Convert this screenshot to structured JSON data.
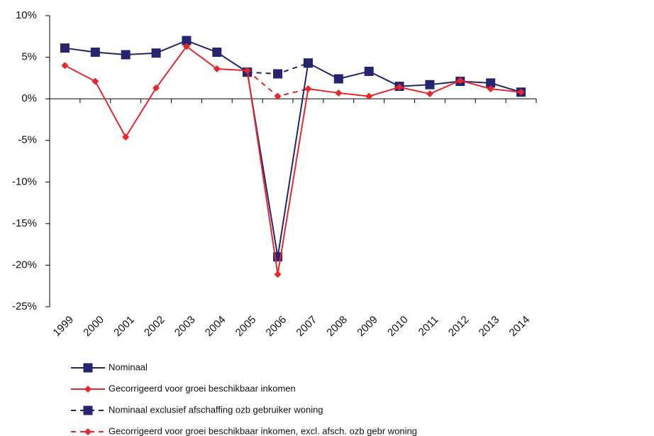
{
  "chart_data": {
    "type": "line",
    "categories": [
      "1999",
      "2000",
      "2001",
      "2002",
      "2003",
      "2004",
      "2005",
      "2006",
      "2007",
      "2008",
      "2009",
      "2010",
      "2011",
      "2012",
      "2013",
      "2014"
    ],
    "series": [
      {
        "name": "Nominaal",
        "color": "#25256f",
        "marker": "square",
        "dashed": false,
        "values": [
          6.1,
          5.6,
          5.3,
          5.5,
          7.0,
          5.6,
          3.2,
          -19.0,
          4.3,
          2.4,
          3.3,
          1.5,
          1.7,
          2.1,
          1.9,
          0.8
        ]
      },
      {
        "name": "Gecorrigeerd voor groei beschikbaar inkomen",
        "color": "#e8262b",
        "marker": "diamond",
        "dashed": false,
        "values": [
          4.0,
          2.1,
          -4.6,
          1.3,
          6.3,
          3.6,
          3.4,
          -21.1,
          1.2,
          0.7,
          0.3,
          1.4,
          0.6,
          2.2,
          1.2,
          0.8
        ]
      },
      {
        "name": "Nominaal exclusief afschaffing ozb gebruiker woning",
        "color": "#25256f",
        "marker": "square",
        "dashed": true,
        "values": [
          null,
          null,
          null,
          null,
          null,
          null,
          3.2,
          3.0,
          4.3,
          null,
          null,
          null,
          null,
          null,
          null,
          null
        ]
      },
      {
        "name": "Gecorrigeerd voor groei beschikbaar inkomen, excl. afsch. ozb gebr woning",
        "color": "#e8262b",
        "marker": "diamond",
        "dashed": true,
        "values": [
          null,
          null,
          null,
          null,
          null,
          null,
          3.4,
          0.3,
          1.2,
          null,
          null,
          null,
          null,
          null,
          null,
          null
        ]
      }
    ],
    "ylim": [
      -25,
      10
    ],
    "yticks": [
      {
        "value": -25,
        "label": "-25%"
      },
      {
        "value": -20,
        "label": "-20%"
      },
      {
        "value": -15,
        "label": "-15%"
      },
      {
        "value": -10,
        "label": "-10%"
      },
      {
        "value": -5,
        "label": "-5%"
      },
      {
        "value": 0,
        "label": "0%"
      },
      {
        "value": 5,
        "label": "5%"
      },
      {
        "value": 10,
        "label": "10%"
      }
    ],
    "grid": false,
    "legend": "bottom"
  }
}
